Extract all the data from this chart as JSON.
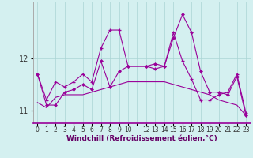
{
  "xlabel": "Windchill (Refroidissement éolien,°C)",
  "ylabel": "",
  "background_color": "#d4f0f0",
  "grid_color": "#aad4d4",
  "line_color": "#990099",
  "yticks": [
    11,
    12
  ],
  "xtick_labels": [
    "0",
    "1",
    "2",
    "3",
    "4",
    "5",
    "6",
    "7",
    "8",
    "9",
    "10",
    "",
    "12",
    "13",
    "14",
    "15",
    "16",
    "17",
    "18",
    "19",
    "20",
    "21",
    "22",
    "23"
  ],
  "series1_x": [
    0,
    1,
    2,
    3,
    4,
    5,
    6,
    7,
    8,
    9,
    10,
    12,
    13,
    14,
    15,
    16,
    17,
    18,
    19,
    20,
    21,
    22,
    23
  ],
  "series1_y": [
    11.7,
    11.2,
    11.55,
    11.45,
    11.55,
    11.7,
    11.55,
    12.2,
    12.55,
    12.55,
    11.85,
    11.85,
    11.8,
    11.85,
    12.5,
    11.95,
    11.6,
    11.2,
    11.2,
    11.3,
    11.35,
    11.7,
    10.95
  ],
  "series2_x": [
    0,
    1,
    2,
    3,
    4,
    5,
    6,
    7,
    8,
    9,
    10,
    12,
    13,
    14,
    15,
    16,
    17,
    18,
    19,
    20,
    21,
    22,
    23
  ],
  "series2_y": [
    11.15,
    11.05,
    11.25,
    11.3,
    11.3,
    11.3,
    11.35,
    11.4,
    11.45,
    11.5,
    11.55,
    11.55,
    11.55,
    11.55,
    11.5,
    11.45,
    11.4,
    11.35,
    11.3,
    11.2,
    11.15,
    11.1,
    10.9
  ],
  "series3_x": [
    0,
    1,
    2,
    3,
    4,
    5,
    6,
    7,
    8,
    9,
    10,
    12,
    13,
    14,
    15,
    16,
    17,
    18,
    19,
    20,
    21,
    22,
    23
  ],
  "series3_y": [
    11.7,
    11.1,
    11.1,
    11.35,
    11.4,
    11.5,
    11.4,
    11.95,
    11.45,
    11.75,
    11.85,
    11.85,
    11.9,
    11.85,
    12.4,
    12.85,
    12.5,
    11.75,
    11.35,
    11.35,
    11.3,
    11.65,
    10.9
  ],
  "ylim": [
    10.75,
    13.1
  ],
  "xlim": [
    -0.5,
    23.5
  ]
}
